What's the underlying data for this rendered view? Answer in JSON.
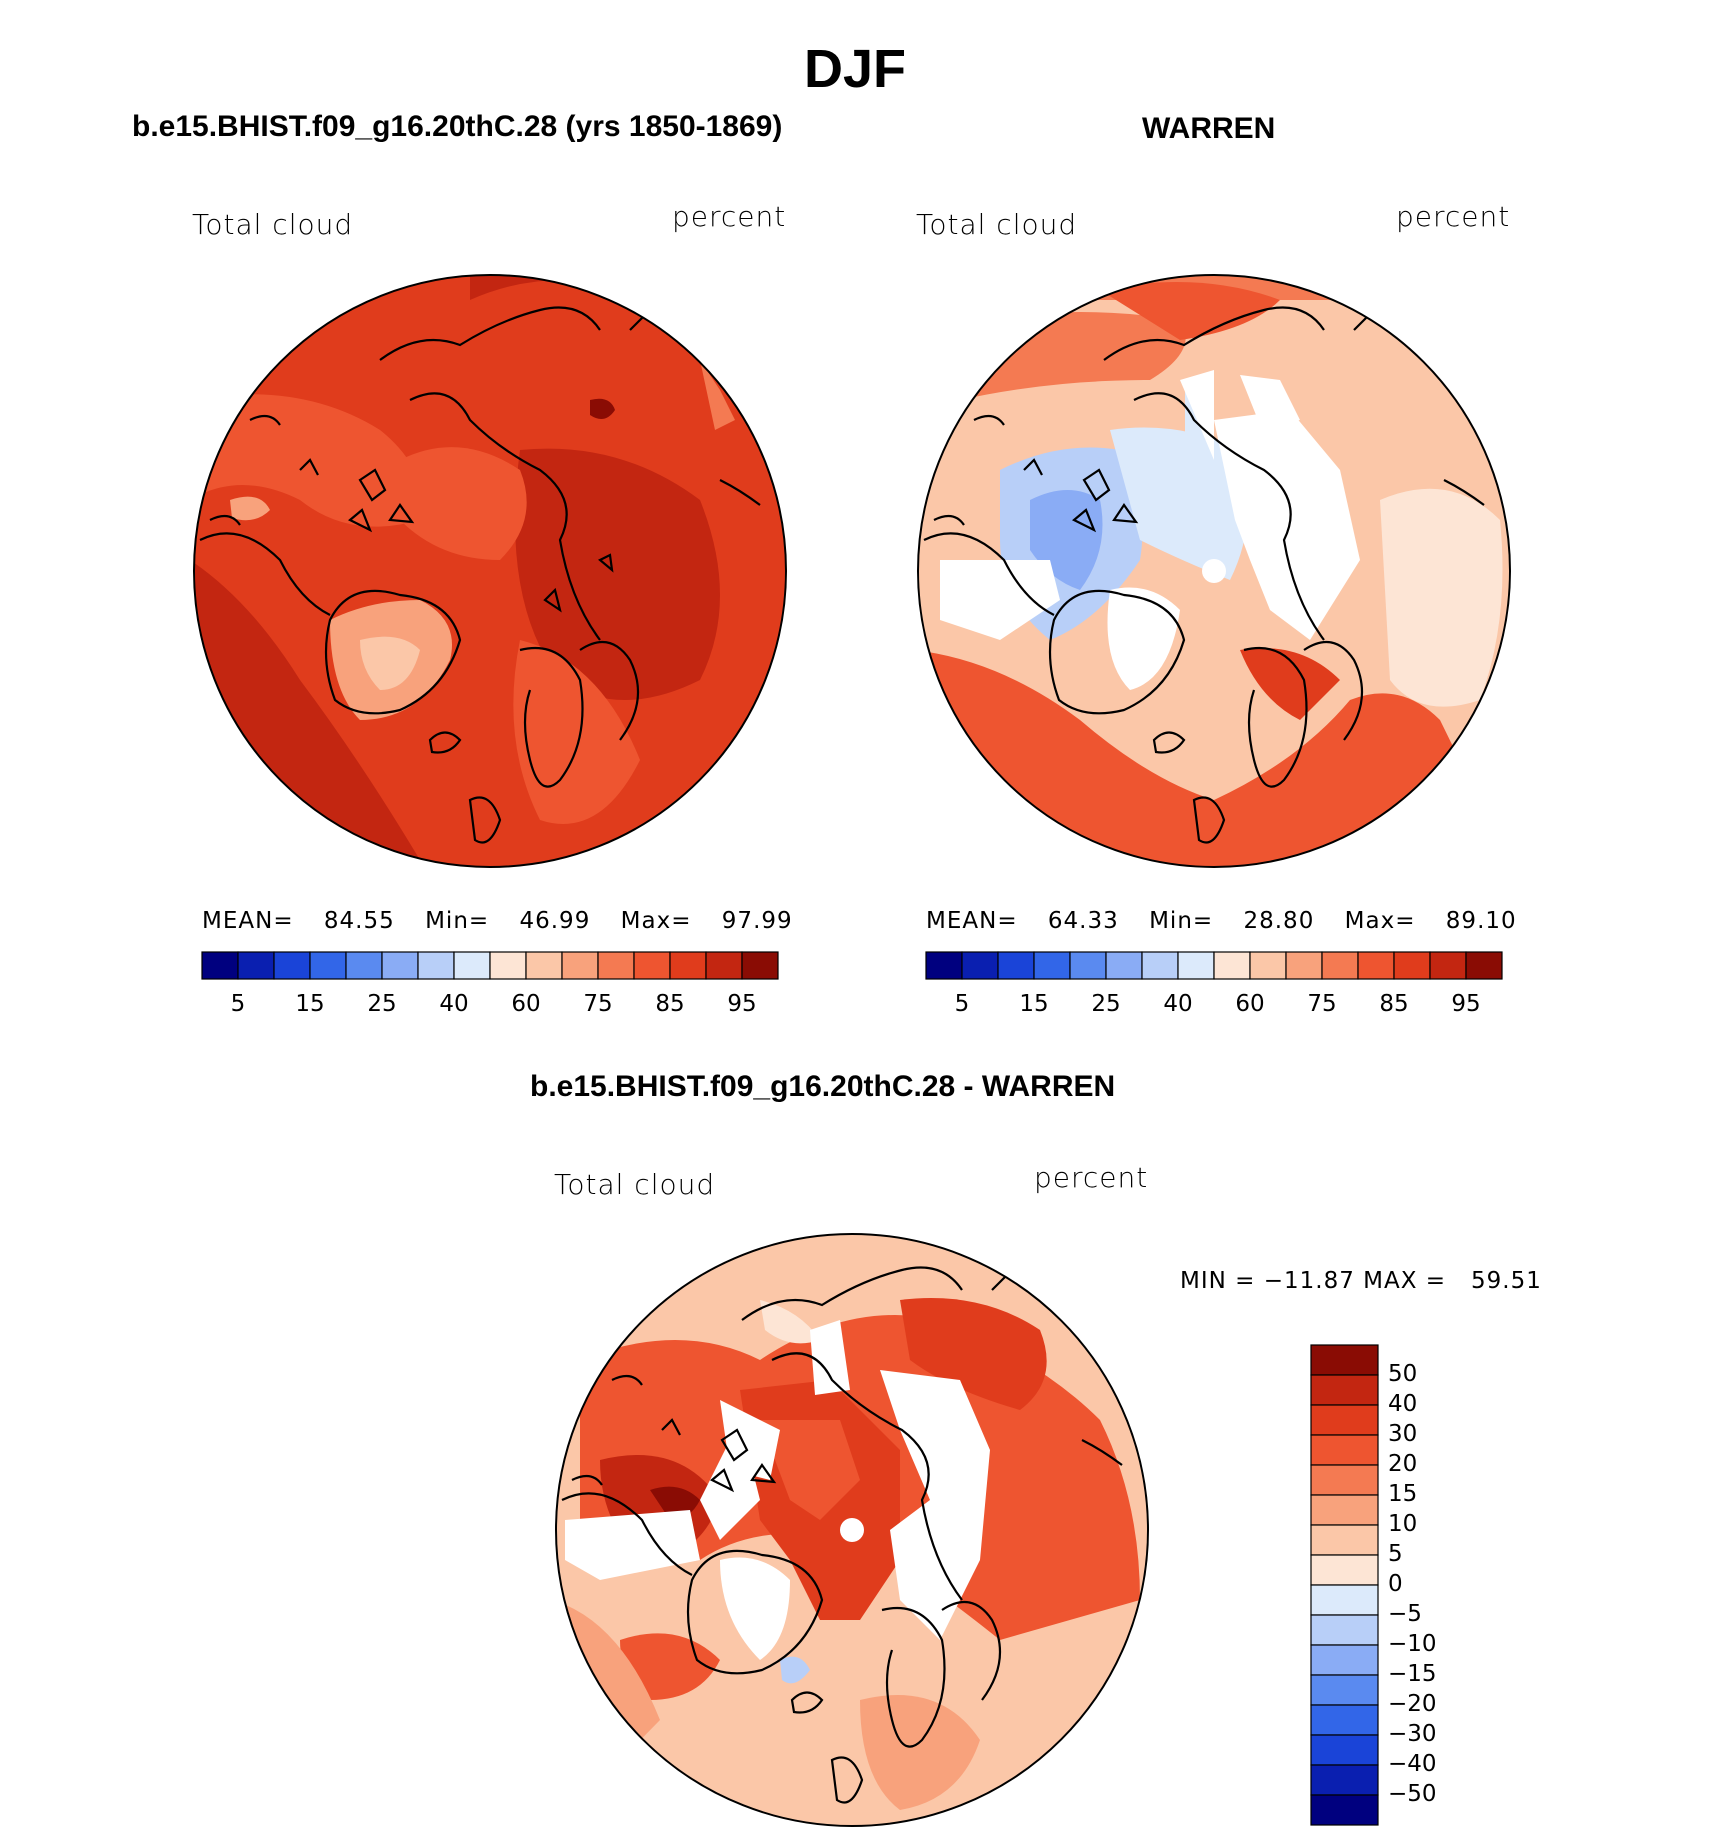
{
  "main_title": "DJF",
  "panels": [
    {
      "title": "b.e15.BHIST.f09_g16.20thC.28 (yrs 1850-1869)",
      "left_label": "Total cloud",
      "right_label": "percent",
      "stats": {
        "mean_label": "MEAN=",
        "mean": "84.55",
        "min_label": "Min=",
        "min": "46.99",
        "max_label": "Max=",
        "max": "97.99"
      },
      "colorbar": {
        "ticks": [
          "5",
          "15",
          "25",
          "40",
          "60",
          "75",
          "85",
          "95"
        ]
      }
    },
    {
      "title": "WARREN",
      "left_label": "Total cloud",
      "right_label": "percent",
      "stats": {
        "mean_label": "MEAN=",
        "mean": "64.33",
        "min_label": "Min=",
        "min": "28.80",
        "max_label": "Max=",
        "max": "89.10"
      },
      "colorbar": {
        "ticks": [
          "5",
          "15",
          "25",
          "40",
          "60",
          "75",
          "85",
          "95"
        ]
      }
    }
  ],
  "diff_panel": {
    "title": "b.e15.BHIST.f09_g16.20thC.28 - WARREN",
    "left_label": "Total cloud",
    "right_label": "percent",
    "minmax": "MIN = −11.87 MAX =   59.51",
    "colorbar": {
      "ticks": [
        "50",
        "40",
        "30",
        "20",
        "15",
        "10",
        "5",
        "0",
        "−5",
        "−10",
        "−15",
        "−20",
        "−30",
        "−40",
        "−50"
      ]
    }
  },
  "colors": {
    "seq_palette": [
      "#00007f",
      "#0a1fb0",
      "#1a44d8",
      "#3266e8",
      "#5a8af0",
      "#8aacf5",
      "#b8cff8",
      "#dceafb",
      "#fde5d5",
      "#fbc7a8",
      "#f8a27c",
      "#f47a52",
      "#ee5530",
      "#e03c1c",
      "#c32611",
      "#8a0c04"
    ],
    "diff_palette": [
      "#8a0c04",
      "#c32611",
      "#e03c1c",
      "#ee5530",
      "#f47a52",
      "#f8a27c",
      "#fbc7a8",
      "#fde5d5",
      "#dceafb",
      "#b8cff8",
      "#8aacf5",
      "#5a8af0",
      "#3266e8",
      "#1a44d8",
      "#0a1fb0",
      "#00007f"
    ]
  }
}
